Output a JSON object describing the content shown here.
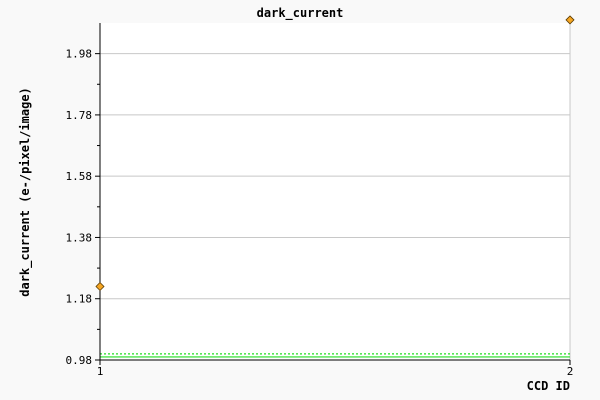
{
  "chart_data": {
    "type": "scatter",
    "title": "dark_current",
    "xlabel": "CCD ID",
    "ylabel": "dark_current (e-/pixel/image)",
    "xlim": [
      1,
      2
    ],
    "ylim": [
      0.98,
      2.08
    ],
    "x_ticks": [
      "1",
      "2"
    ],
    "y_ticks": [
      "0.98",
      "1.18",
      "1.38",
      "1.58",
      "1.78",
      "1.98"
    ],
    "grid": true,
    "points": [
      {
        "x": 1,
        "y": 1.22
      },
      {
        "x": 2,
        "y": 2.09
      }
    ],
    "reference_lines": [
      {
        "y": 0.99,
        "style": "solid"
      },
      {
        "y": 1.0,
        "style": "dotted"
      }
    ],
    "colors": {
      "marker": "#f5a623",
      "marker_edge": "#5a3a00",
      "reference": "#22dd22",
      "grid": "#c8c8c8",
      "plot_bg": "#ffffff"
    }
  }
}
